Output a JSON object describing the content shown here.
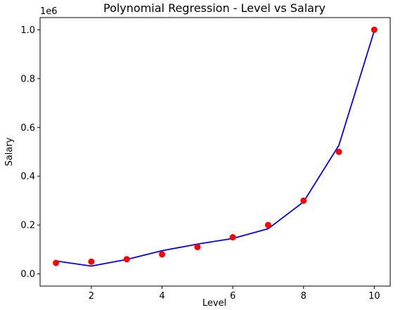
{
  "chart_data": {
    "type": "scatter",
    "title": "Polynomial Regression - Level vs Salary",
    "xlabel": "Level",
    "ylabel": "Salary",
    "y_offset_label": "1e6",
    "xlim": [
      0.55,
      10.45
    ],
    "ylim": [
      -0.05,
      1.05
    ],
    "x_ticks": [
      2,
      4,
      6,
      8,
      10
    ],
    "x_tick_labels": [
      "2",
      "4",
      "6",
      "8",
      "10"
    ],
    "y_ticks": [
      0.0,
      0.2,
      0.4,
      0.6,
      0.8,
      1.0
    ],
    "y_tick_labels": [
      "0.0",
      "0.2",
      "0.4",
      "0.6",
      "0.8",
      "1.0"
    ],
    "grid": false,
    "series": [
      {
        "kind": "scatter",
        "color": "#ff0000",
        "x": [
          1,
          2,
          3,
          4,
          5,
          6,
          7,
          8,
          9,
          10
        ],
        "y": [
          0.045,
          0.05,
          0.06,
          0.08,
          0.11,
          0.15,
          0.2,
          0.3,
          0.5,
          1.0
        ]
      },
      {
        "kind": "line",
        "color": "#0000ff",
        "x": [
          1,
          2,
          3,
          4,
          5,
          6,
          7,
          8,
          9,
          10
        ],
        "y": [
          0.053,
          0.032,
          0.059,
          0.095,
          0.122,
          0.145,
          0.185,
          0.295,
          0.527,
          0.996
        ]
      }
    ]
  }
}
